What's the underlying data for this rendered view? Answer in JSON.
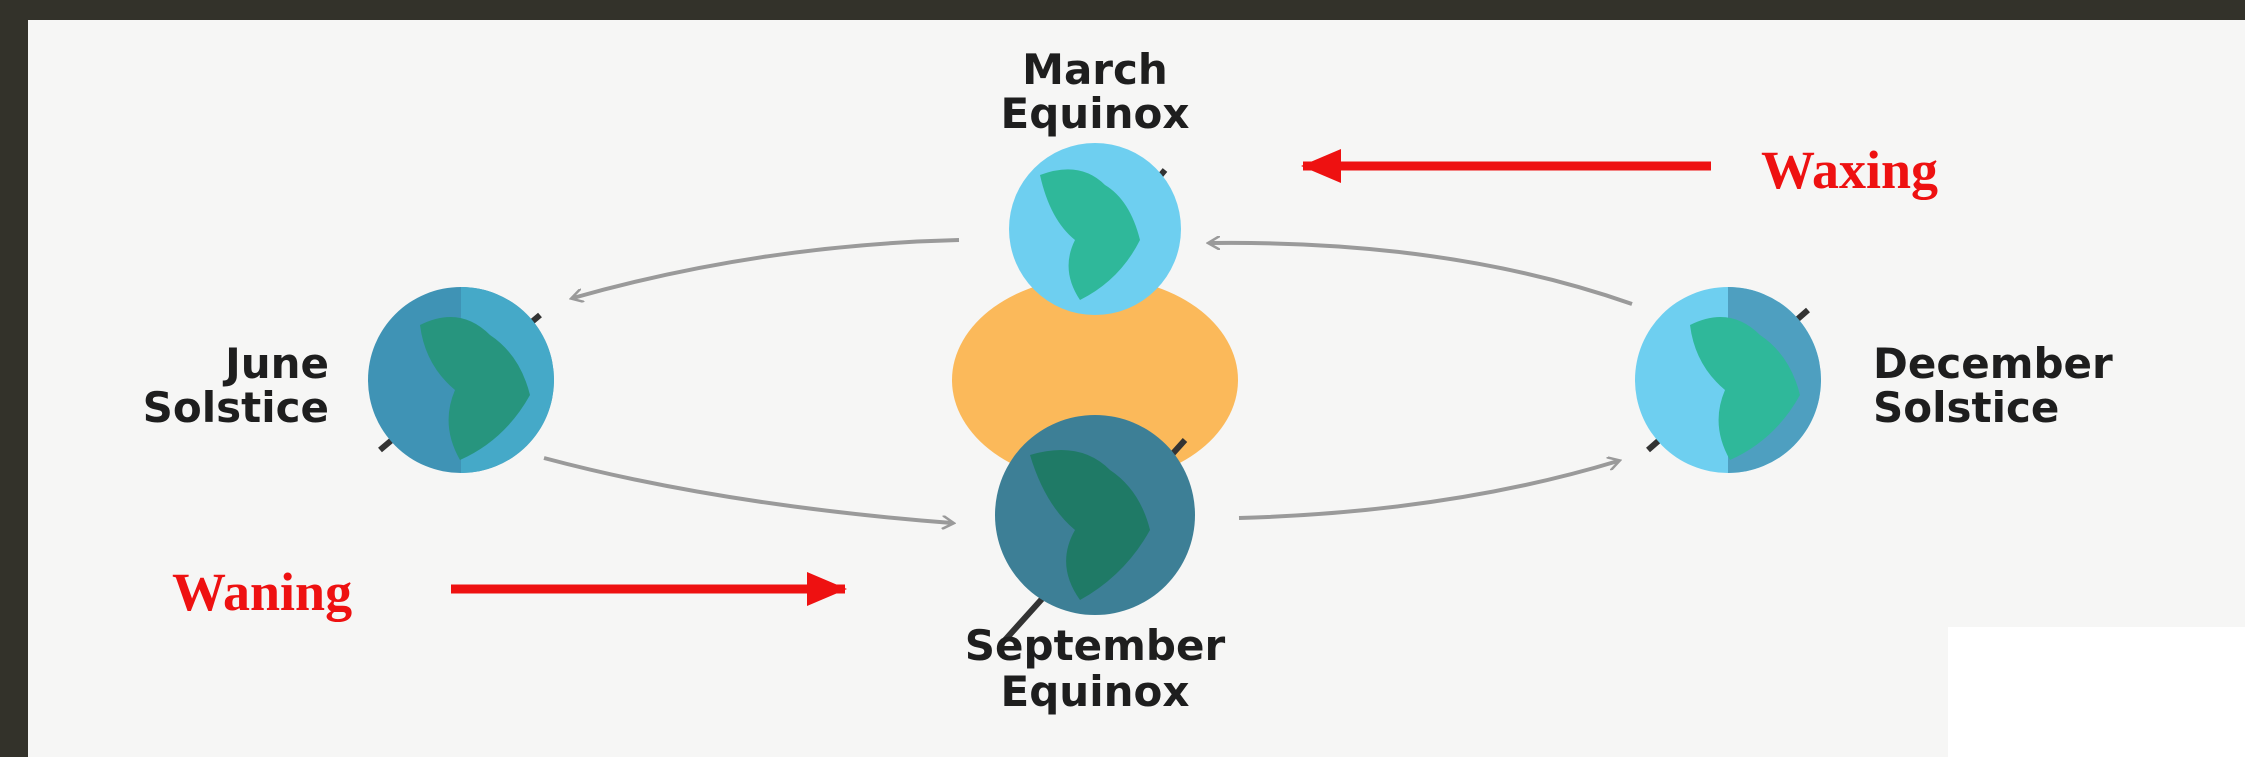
{
  "nodes": [
    {
      "label": [
        "March",
        "Equinox"
      ]
    },
    {
      "label": [
        "June",
        "Solstice"
      ]
    },
    {
      "label": [
        "December",
        "Solstice"
      ]
    },
    {
      "label": [
        "September",
        "Equinox"
      ]
    }
  ],
  "annotations": [
    "Waxing",
    "Waning"
  ]
}
